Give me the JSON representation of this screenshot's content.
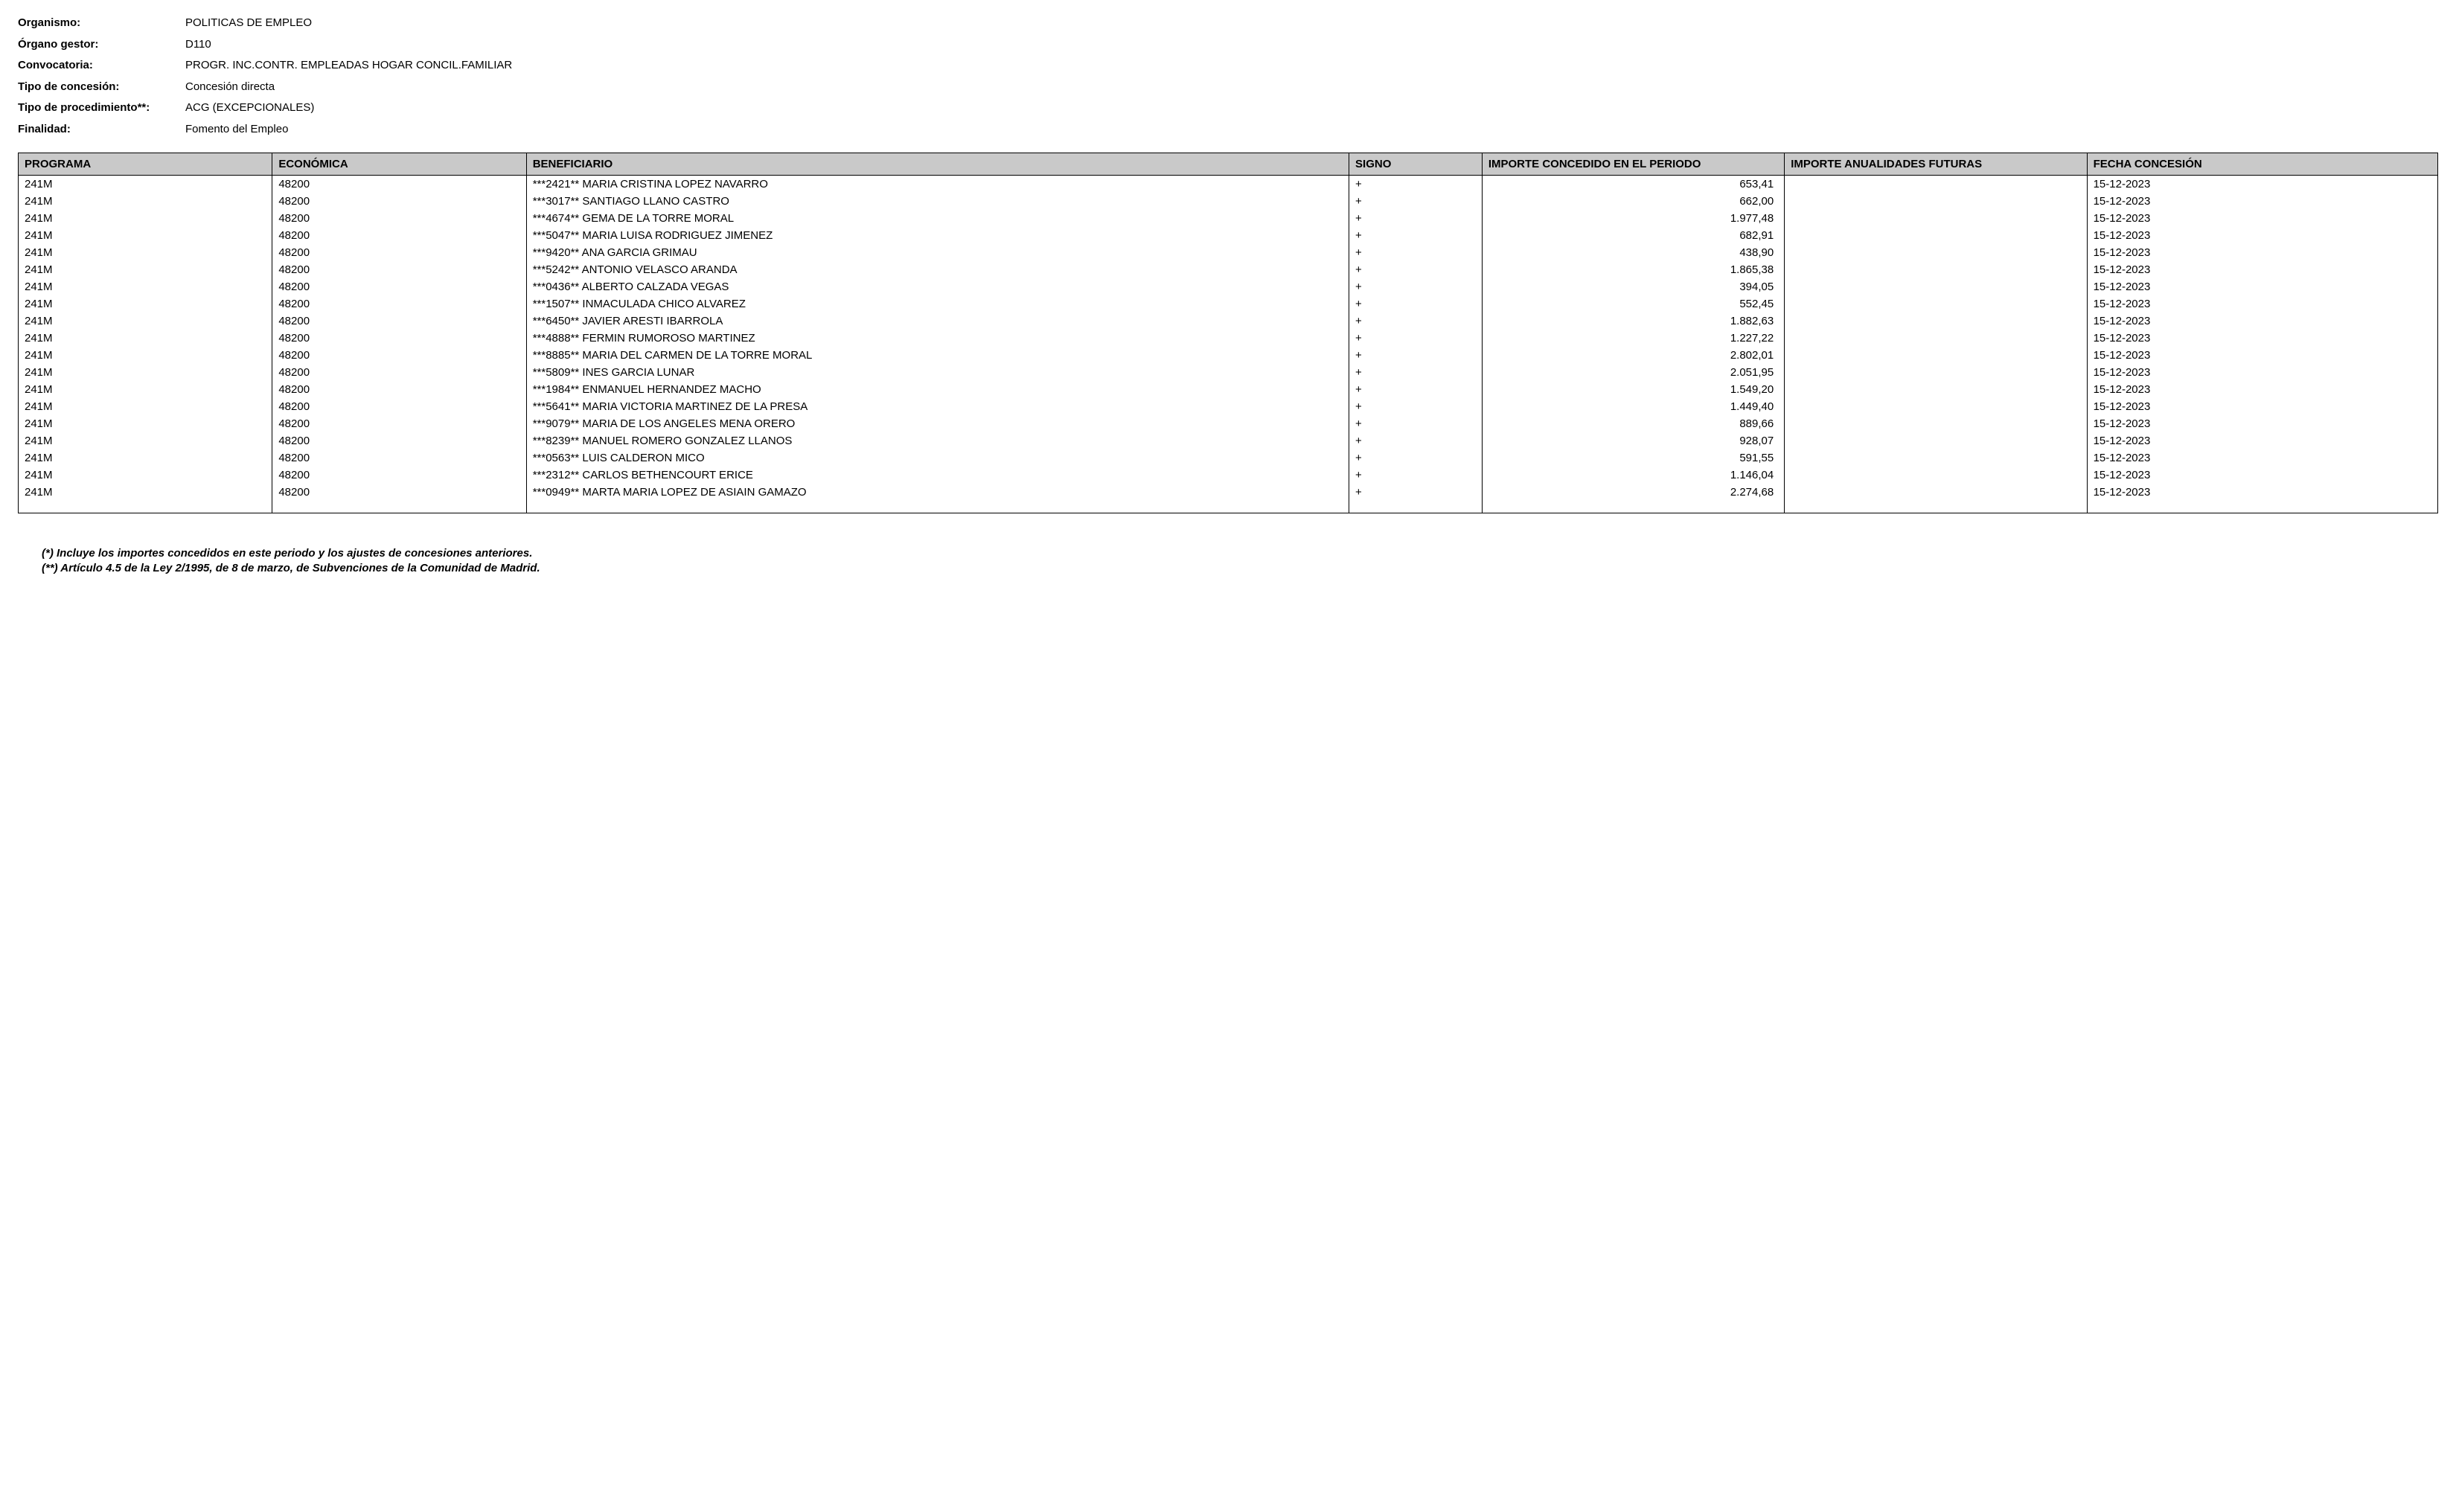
{
  "meta": {
    "organismo_label": "Organismo:",
    "organismo_value": "POLITICAS DE EMPLEO",
    "organo_gestor_label": "Órgano gestor:",
    "organo_gestor_value": "D110",
    "convocatoria_label": "Convocatoria:",
    "convocatoria_value": "PROGR. INC.CONTR. EMPLEADAS HOGAR CONCIL.FAMILIAR",
    "tipo_concesion_label": "Tipo de concesión:",
    "tipo_concesion_value": "Concesión directa",
    "tipo_procedimiento_label": "Tipo de procedimiento**:",
    "tipo_procedimiento_value": "ACG (EXCEPCIONALES)",
    "finalidad_label": "Finalidad:",
    "finalidad_value": "Fomento del Empleo"
  },
  "table": {
    "headers": {
      "programa": "PROGRAMA",
      "economica": "ECONÓMICA",
      "beneficiario": "BENEFICIARIO",
      "signo": "SIGNO",
      "importe_periodo": "IMPORTE CONCEDIDO EN EL PERIODO",
      "importe_futuras": "IMPORTE ANUALIDADES FUTURAS",
      "fecha": "FECHA CONCESIÓN"
    },
    "rows": [
      {
        "programa": "241M",
        "economica": "48200",
        "beneficiario": "***2421** MARIA CRISTINA LOPEZ NAVARRO",
        "signo": "+",
        "importe_periodo": "653,41",
        "importe_futuras": "",
        "fecha": "15-12-2023"
      },
      {
        "programa": "241M",
        "economica": "48200",
        "beneficiario": "***3017** SANTIAGO LLANO CASTRO",
        "signo": "+",
        "importe_periodo": "662,00",
        "importe_futuras": "",
        "fecha": "15-12-2023"
      },
      {
        "programa": "241M",
        "economica": "48200",
        "beneficiario": "***4674** GEMA DE LA TORRE MORAL",
        "signo": "+",
        "importe_periodo": "1.977,48",
        "importe_futuras": "",
        "fecha": "15-12-2023"
      },
      {
        "programa": "241M",
        "economica": "48200",
        "beneficiario": "***5047** MARIA LUISA RODRIGUEZ JIMENEZ",
        "signo": "+",
        "importe_periodo": "682,91",
        "importe_futuras": "",
        "fecha": "15-12-2023"
      },
      {
        "programa": "241M",
        "economica": "48200",
        "beneficiario": "***9420** ANA GARCIA GRIMAU",
        "signo": "+",
        "importe_periodo": "438,90",
        "importe_futuras": "",
        "fecha": "15-12-2023"
      },
      {
        "programa": "241M",
        "economica": "48200",
        "beneficiario": "***5242** ANTONIO VELASCO ARANDA",
        "signo": "+",
        "importe_periodo": "1.865,38",
        "importe_futuras": "",
        "fecha": "15-12-2023"
      },
      {
        "programa": "241M",
        "economica": "48200",
        "beneficiario": "***0436** ALBERTO CALZADA VEGAS",
        "signo": "+",
        "importe_periodo": "394,05",
        "importe_futuras": "",
        "fecha": "15-12-2023"
      },
      {
        "programa": "241M",
        "economica": "48200",
        "beneficiario": "***1507** INMACULADA CHICO ALVAREZ",
        "signo": "+",
        "importe_periodo": "552,45",
        "importe_futuras": "",
        "fecha": "15-12-2023"
      },
      {
        "programa": "241M",
        "economica": "48200",
        "beneficiario": "***6450** JAVIER ARESTI IBARROLA",
        "signo": "+",
        "importe_periodo": "1.882,63",
        "importe_futuras": "",
        "fecha": "15-12-2023"
      },
      {
        "programa": "241M",
        "economica": "48200",
        "beneficiario": "***4888** FERMIN RUMOROSO MARTINEZ",
        "signo": "+",
        "importe_periodo": "1.227,22",
        "importe_futuras": "",
        "fecha": "15-12-2023"
      },
      {
        "programa": "241M",
        "economica": "48200",
        "beneficiario": "***8885** MARIA DEL CARMEN DE LA TORRE MORAL",
        "signo": "+",
        "importe_periodo": "2.802,01",
        "importe_futuras": "",
        "fecha": "15-12-2023"
      },
      {
        "programa": "241M",
        "economica": "48200",
        "beneficiario": "***5809** INES GARCIA LUNAR",
        "signo": "+",
        "importe_periodo": "2.051,95",
        "importe_futuras": "",
        "fecha": "15-12-2023"
      },
      {
        "programa": "241M",
        "economica": "48200",
        "beneficiario": "***1984** ENMANUEL HERNANDEZ MACHO",
        "signo": "+",
        "importe_periodo": "1.549,20",
        "importe_futuras": "",
        "fecha": "15-12-2023"
      },
      {
        "programa": "241M",
        "economica": "48200",
        "beneficiario": "***5641** MARIA VICTORIA MARTINEZ DE LA PRESA",
        "signo": "+",
        "importe_periodo": "1.449,40",
        "importe_futuras": "",
        "fecha": "15-12-2023"
      },
      {
        "programa": "241M",
        "economica": "48200",
        "beneficiario": "***9079** MARIA DE LOS ANGELES MENA ORERO",
        "signo": "+",
        "importe_periodo": "889,66",
        "importe_futuras": "",
        "fecha": "15-12-2023"
      },
      {
        "programa": "241M",
        "economica": "48200",
        "beneficiario": "***8239** MANUEL ROMERO GONZALEZ LLANOS",
        "signo": "+",
        "importe_periodo": "928,07",
        "importe_futuras": "",
        "fecha": "15-12-2023"
      },
      {
        "programa": "241M",
        "economica": "48200",
        "beneficiario": "***0563** LUIS CALDERON MICO",
        "signo": "+",
        "importe_periodo": "591,55",
        "importe_futuras": "",
        "fecha": "15-12-2023"
      },
      {
        "programa": "241M",
        "economica": "48200",
        "beneficiario": "***2312** CARLOS BETHENCOURT ERICE",
        "signo": "+",
        "importe_periodo": "1.146,04",
        "importe_futuras": "",
        "fecha": "15-12-2023"
      },
      {
        "programa": "241M",
        "economica": "48200",
        "beneficiario": "***0949** MARTA MARIA LOPEZ DE ASIAIN GAMAZO",
        "signo": "+",
        "importe_periodo": "2.274,68",
        "importe_futuras": "",
        "fecha": "15-12-2023"
      }
    ]
  },
  "footnotes": {
    "note1": "(*) Incluye los importes concedidos en este periodo y los ajustes de concesiones anteriores.",
    "note2": "(**) Artículo 4.5 de la Ley 2/1995, de 8 de marzo, de Subvenciones de la Comunidad de Madrid."
  },
  "styling": {
    "header_bg": "#c9c9c9",
    "border_color": "#000000",
    "text_color": "#000000",
    "font_family": "Arial",
    "base_font_size": 15,
    "column_widths_pct": {
      "programa": 10.5,
      "economica": 10.5,
      "beneficiario": 34,
      "signo": 5.5,
      "importe_periodo": 12.5,
      "importe_futuras": 12.5,
      "fecha": 14.5
    }
  }
}
